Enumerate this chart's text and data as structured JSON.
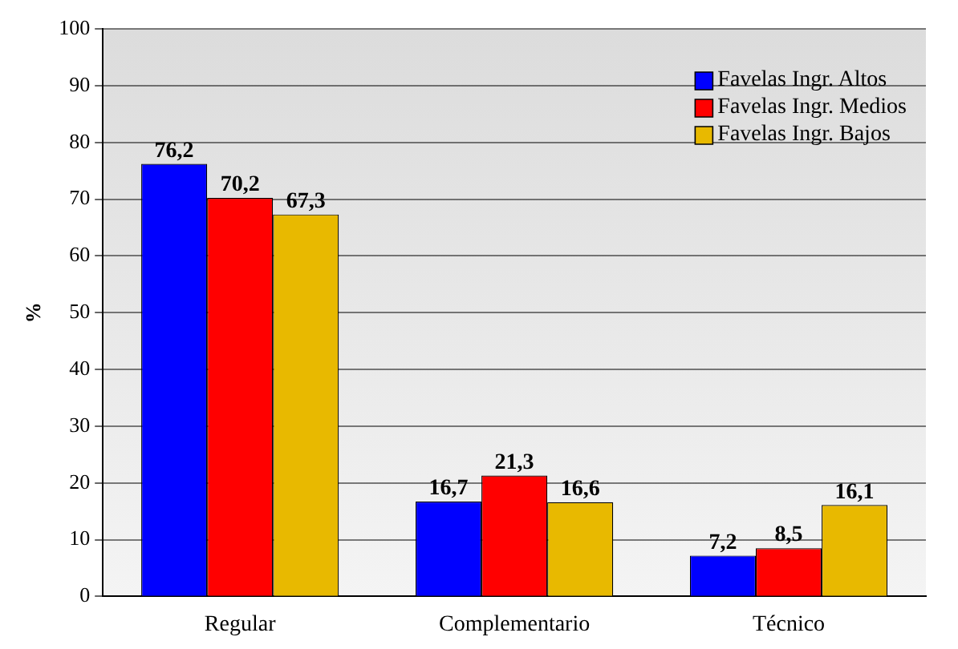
{
  "chart_data": {
    "type": "bar",
    "ylabel": "%",
    "categories": [
      "Regular",
      "Complementario",
      "Técnico"
    ],
    "series": [
      {
        "name": "Favelas Ingr. Altos",
        "color": "#0000ff",
        "values": [
          76.2,
          16.7,
          7.2
        ],
        "value_labels": [
          "76,2",
          "16,7",
          "7,2"
        ]
      },
      {
        "name": "Favelas Ingr. Medios",
        "color": "#ff0000",
        "values": [
          70.2,
          21.3,
          8.5
        ],
        "value_labels": [
          "70,2",
          "21,3",
          "8,5"
        ]
      },
      {
        "name": "Favelas Ingr. Bajos",
        "color": "#e8b900",
        "values": [
          67.3,
          16.6,
          16.1
        ],
        "value_labels": [
          "67,3",
          "16,6",
          "16,1"
        ]
      }
    ],
    "ylim": [
      0,
      100
    ],
    "yticks": [
      0,
      10,
      20,
      30,
      40,
      50,
      60,
      70,
      80,
      90,
      100
    ],
    "grid": "y",
    "legend": "top right"
  }
}
